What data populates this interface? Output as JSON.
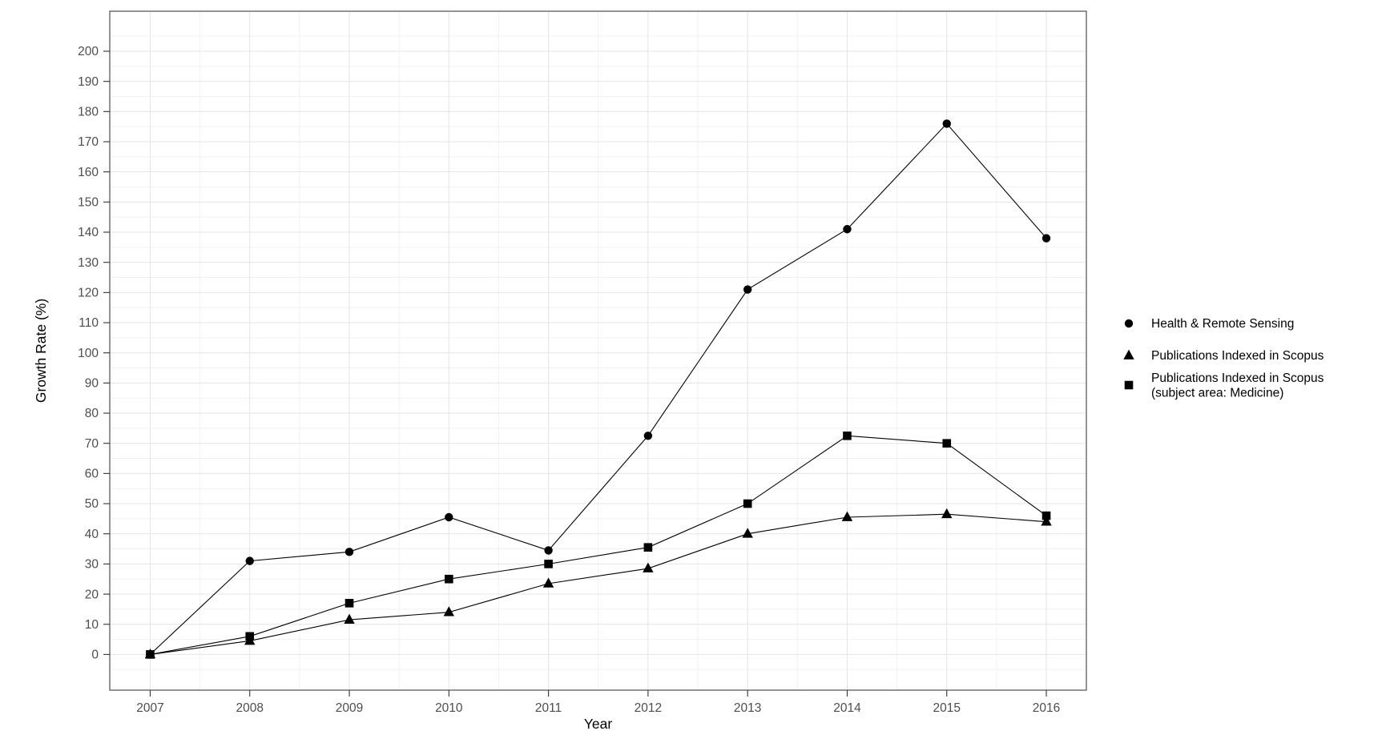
{
  "chart_data": {
    "type": "line",
    "title": "",
    "xlabel": "Year",
    "ylabel": "Growth Rate (%)",
    "x": [
      2007,
      2008,
      2009,
      2010,
      2011,
      2012,
      2013,
      2014,
      2015,
      2016
    ],
    "y_major_breaks": [
      0,
      10,
      20,
      30,
      40,
      50,
      60,
      70,
      80,
      90,
      100,
      110,
      120,
      130,
      140,
      150,
      160,
      170,
      180,
      190,
      200
    ],
    "y_minor_step": 5,
    "x_minor_step": 0.5,
    "ylim": [
      -12,
      213
    ],
    "grid": true,
    "legend_position": "right",
    "series": [
      {
        "name": "Health & Remote Sensing",
        "marker": "circle",
        "legend_lines": [
          "Health & Remote Sensing"
        ],
        "values": [
          0,
          31,
          34,
          45.5,
          34.5,
          72.5,
          121,
          141,
          176,
          138
        ]
      },
      {
        "name": "Publications Indexed in Scopus",
        "marker": "triangle",
        "legend_lines": [
          "Publications Indexed in Scopus"
        ],
        "values": [
          0,
          4.5,
          11.5,
          14,
          23.5,
          28.5,
          40,
          45.5,
          46.5,
          44
        ]
      },
      {
        "name": "Publications Indexed in Scopus (subject area: Medicine)",
        "marker": "square",
        "legend_lines": [
          "Publications Indexed in Scopus",
          "(subject area: Medicine)"
        ],
        "values": [
          0,
          6,
          17,
          25,
          30,
          35.5,
          50,
          72.5,
          70,
          46
        ]
      }
    ],
    "colors": {
      "series": "#000000",
      "grid_major": "#e4e4e4",
      "grid_minor": "#f1f1f1",
      "panel_border": "#4d4d4d",
      "tick_mark": "#333333",
      "tick_label": "#4d4d4d",
      "axis_title": "#000000",
      "legend_text": "#000000",
      "background": "#ffffff"
    }
  }
}
